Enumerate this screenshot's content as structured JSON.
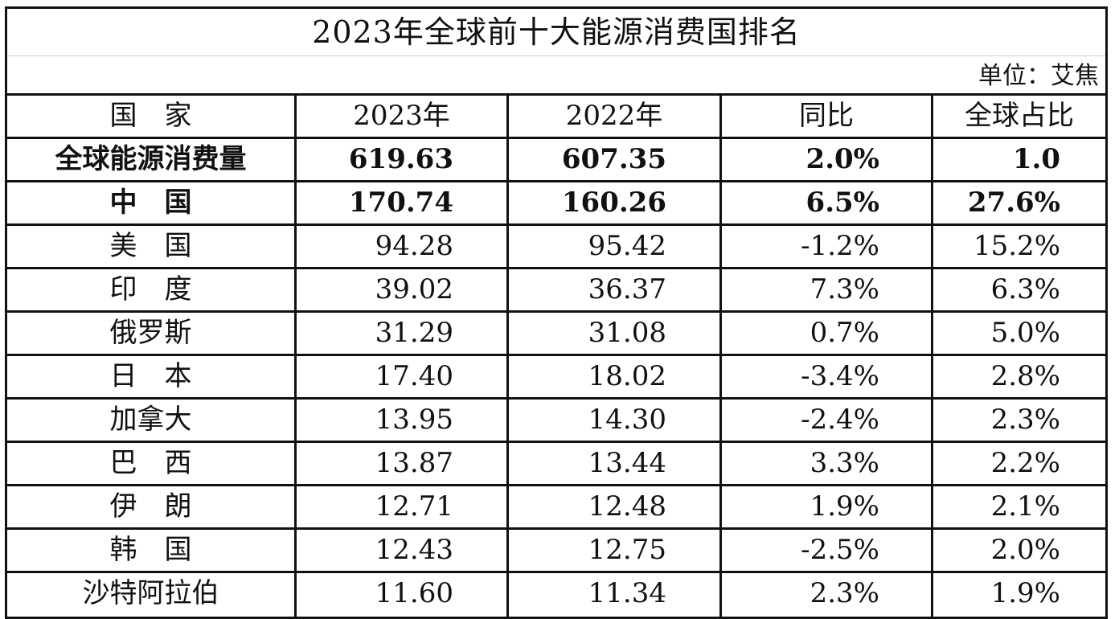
{
  "title": "2023年全球前十大能源消费国排名",
  "unit": "单位：艾焦",
  "headers": [
    "国　家",
    "2023年",
    "2022年",
    "同比",
    "全球占比"
  ],
  "rows": [
    {
      "country": "全球能源消费量",
      "y2023": "619.63",
      "y2022": "607.35",
      "yoy": "2.0%",
      "share": "1.0",
      "bold": true
    },
    {
      "country": "中　国",
      "y2023": "170.74",
      "y2022": "160.26",
      "yoy": "6.5%",
      "share": "27.6%",
      "bold": true
    },
    {
      "country": "美　国",
      "y2023": "94.28",
      "y2022": "95.42",
      "yoy": "-1.2%",
      "share": "15.2%"
    },
    {
      "country": "印　度",
      "y2023": "39.02",
      "y2022": "36.37",
      "yoy": "7.3%",
      "share": "6.3%"
    },
    {
      "country": "俄罗斯",
      "y2023": "31.29",
      "y2022": "31.08",
      "yoy": "0.7%",
      "share": "5.0%"
    },
    {
      "country": "日　本",
      "y2023": "17.40",
      "y2022": "18.02",
      "yoy": "-3.4%",
      "share": "2.8%"
    },
    {
      "country": "加拿大",
      "y2023": "13.95",
      "y2022": "14.30",
      "yoy": "-2.4%",
      "share": "2.3%"
    },
    {
      "country": "巴　西",
      "y2023": "13.87",
      "y2022": "13.44",
      "yoy": "3.3%",
      "share": "2.2%"
    },
    {
      "country": "伊　朗",
      "y2023": "12.71",
      "y2022": "12.48",
      "yoy": "1.9%",
      "share": "2.1%"
    },
    {
      "country": "韩　国",
      "y2023": "12.43",
      "y2022": "12.75",
      "yoy": "-2.5%",
      "share": "2.0%"
    },
    {
      "country": "沙特阿拉伯",
      "y2023": "11.60",
      "y2022": "11.34",
      "yoy": "2.3%",
      "share": "1.9%"
    }
  ]
}
